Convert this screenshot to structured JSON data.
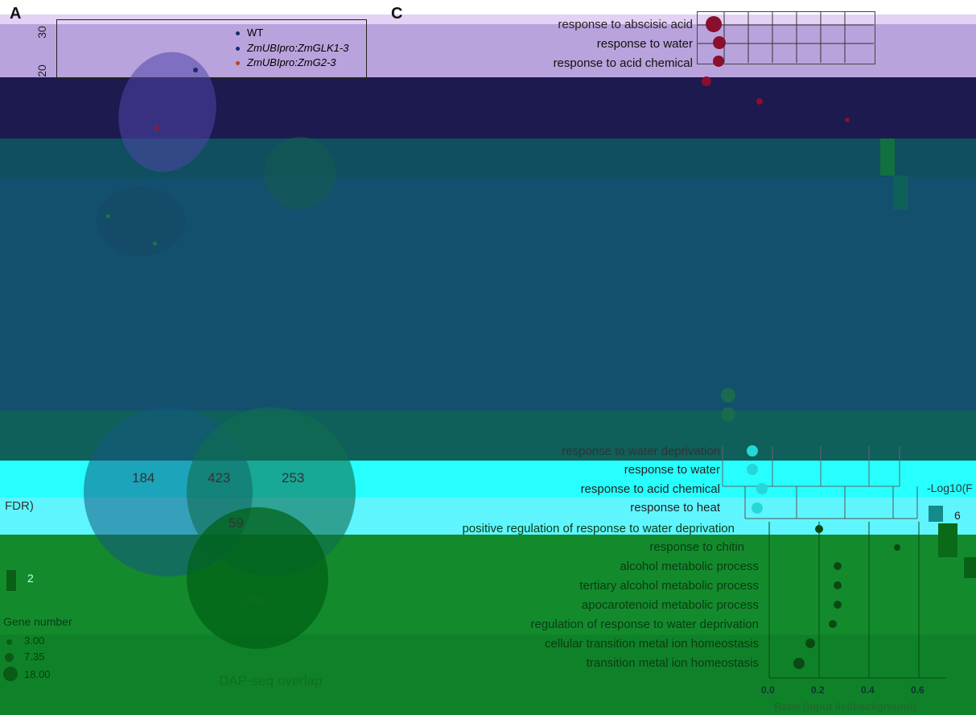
{
  "panels": {
    "a": "A",
    "c": "C"
  },
  "panel_a": {
    "y_ticks": [
      "30",
      "20"
    ],
    "legend": [
      {
        "label": "WT",
        "color": "#1b2a6b"
      },
      {
        "label": "ZmUBIpro:ZmGLK1-3",
        "color": "#1b2a6b"
      },
      {
        "label": "ZmUBIpro:ZmG2-3",
        "color": "#b8461b"
      }
    ]
  },
  "venn": {
    "counts": [
      "184",
      "423",
      "253",
      "59",
      "3700"
    ],
    "caption": "DAP-seq overlap"
  },
  "left_legend": {
    "fdr_fragment": "FDR)",
    "value_2": "2",
    "gene_title": "Gene number",
    "gene_values": [
      "3.00",
      "7.35",
      "18.00"
    ]
  },
  "panel_c": {
    "top_terms": [
      "response to abscisic acid",
      "response to water",
      "response to acid chemical"
    ],
    "mid_terms": [
      "response to water deprivation",
      "response to water",
      "response to acid chemical",
      "response to heat"
    ],
    "bottom_terms": [
      "positive regulation of response to water deprivation",
      "response to chitin",
      "alcohol metabolic process",
      "tertiary alcohol metabolic process",
      "apocarotenoid metabolic process",
      "regulation of response to water deprivation",
      "cellular transition metal ion homeostasis",
      "transition metal ion homeostasis"
    ],
    "right_legend_title": "-Log10(F",
    "right_legend_value": "6",
    "x_ticks": [
      "0.0",
      "0.2",
      "0.4",
      "0.6"
    ],
    "x_label": "Ratio (input list/background)"
  },
  "chart_data": [
    {
      "type": "scatter",
      "title": "",
      "xlabel": "Ratio (input list/background)",
      "ylabel": "",
      "categories": [
        "response to water deprivation",
        "response to water",
        "response to acid chemical",
        "response to heat"
      ],
      "values": [
        0.05,
        0.05,
        0.07,
        0.06
      ]
    },
    {
      "type": "scatter",
      "title": "",
      "xlabel": "Ratio (input list/background)",
      "ylabel": "",
      "xlim": [
        0,
        0.7
      ],
      "categories": [
        "positive regulation of response to water deprivation",
        "response to chitin",
        "alcohol metabolic process",
        "tertiary alcohol metabolic process",
        "apocarotenoid metabolic process",
        "regulation of response to water deprivation",
        "cellular transition metal ion homeostasis",
        "transition metal ion homeostasis"
      ],
      "values": [
        0.19,
        0.5,
        0.27,
        0.27,
        0.27,
        0.25,
        0.16,
        0.12
      ]
    }
  ]
}
